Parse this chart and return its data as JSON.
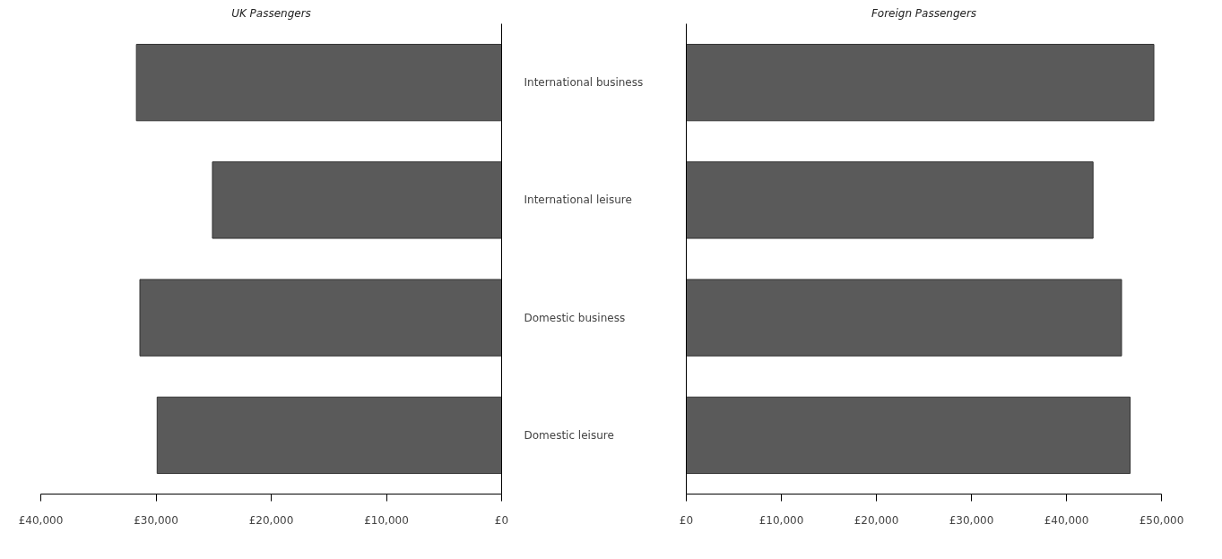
{
  "chart_data": [
    {
      "type": "bar",
      "orientation": "horizontal",
      "title": "UK Passengers",
      "categories": [
        "International business",
        "International leisure",
        "Domestic business",
        "Domestic leisure"
      ],
      "values": [
        31700,
        25100,
        31400,
        29900
      ],
      "color": "#5a5a5a",
      "xlim": [
        40000,
        0
      ],
      "xticks": [
        {
          "value": 40000,
          "label": "£40,000"
        },
        {
          "value": 30000,
          "label": "£30,000"
        },
        {
          "value": 20000,
          "label": "£20,000"
        },
        {
          "value": 10000,
          "label": "£10,000"
        },
        {
          "value": 0,
          "label": "£0"
        }
      ],
      "grid": false
    },
    {
      "type": "bar",
      "orientation": "horizontal",
      "title": "Foreign Passengers",
      "categories": [
        null,
        null,
        null,
        null
      ],
      "values": [
        49200,
        42800,
        45800,
        46700
      ],
      "color": "#5a5a5a",
      "xlim": [
        0,
        50000
      ],
      "xticks": [
        {
          "value": 0,
          "label": "£0"
        },
        {
          "value": 10000,
          "label": "£10,000"
        },
        {
          "value": 20000,
          "label": "£20,000"
        },
        {
          "value": 30000,
          "label": "£30,000"
        },
        {
          "value": 40000,
          "label": "£40,000"
        },
        {
          "value": 50000,
          "label": "£50,000"
        }
      ],
      "tick_labels": "x",
      "grid": false
    }
  ]
}
